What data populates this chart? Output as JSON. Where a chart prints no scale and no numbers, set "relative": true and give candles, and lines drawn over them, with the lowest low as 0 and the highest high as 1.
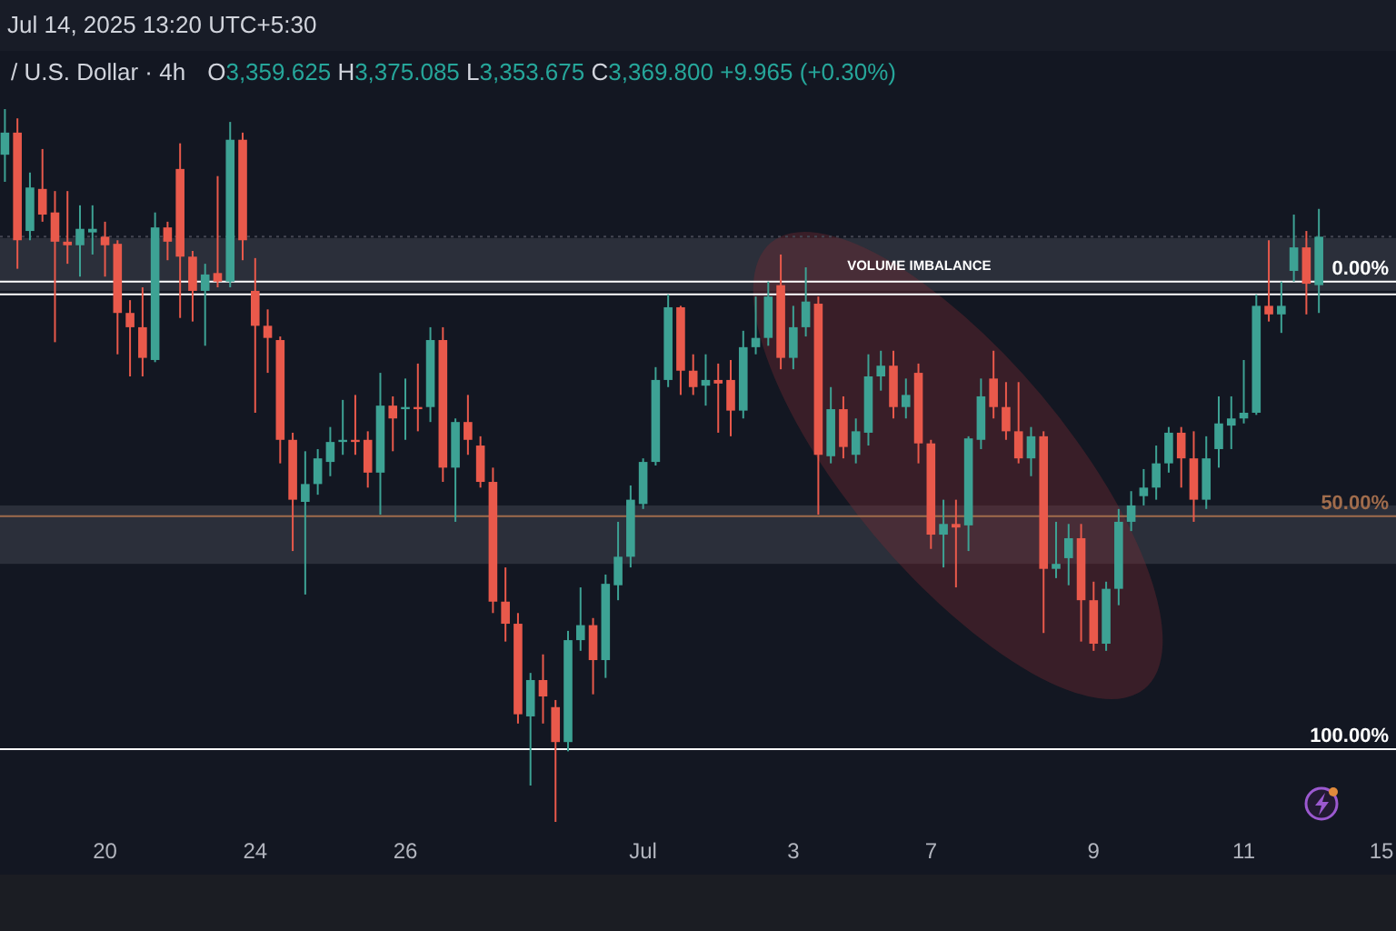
{
  "chart_data": {
    "type": "candlestick",
    "title": "/ U.S. Dollar · 4h",
    "subtitle": "O3,359.625 H3,375.085 L3,353.675 C3,369.800 +9.965 (+0.30%)",
    "annotations": [
      "Jul 14, 2025 13:20 UTC+5:30",
      {
        "text": "0.00%",
        "y": 0.758
      },
      {
        "text": "50.00%",
        "y": 0.429
      },
      {
        "text": "100.00%",
        "y": 0.102
      }
    ],
    "relative": true,
    "categories": [
      null,
      null,
      null,
      null,
      null,
      null,
      null,
      null,
      "20",
      null,
      null,
      null,
      null,
      null,
      null,
      null,
      null,
      null,
      null,
      null,
      "24",
      null,
      null,
      null,
      null,
      null,
      null,
      null,
      null,
      null,
      null,
      null,
      "26",
      null,
      null,
      null,
      null,
      null,
      null,
      null,
      null,
      null,
      null,
      null,
      null,
      null,
      null,
      null,
      null,
      null,
      null,
      "Jul",
      null,
      null,
      null,
      null,
      null,
      null,
      null,
      null,
      null,
      null,
      null,
      "3",
      null,
      null,
      null,
      null,
      null,
      null,
      null,
      null,
      null,
      null,
      "7",
      null,
      null,
      null,
      null,
      null,
      null,
      null,
      null,
      null,
      null,
      null,
      null,
      "9",
      null,
      null,
      null,
      null,
      null,
      null,
      null,
      null,
      null,
      null,
      null,
      "11",
      null,
      null,
      null,
      null,
      null,
      null,
      null,
      null,
      null,
      null,
      "15"
    ],
    "ohlc": [
      [
        0.936,
        1.0,
        0.898,
        0.967
      ],
      [
        0.967,
        0.987,
        0.776,
        0.816
      ],
      [
        0.829,
        0.911,
        0.816,
        0.89
      ],
      [
        0.888,
        0.944,
        0.842,
        0.852
      ],
      [
        0.855,
        0.885,
        0.673,
        0.814
      ],
      [
        0.814,
        0.885,
        0.783,
        0.809
      ],
      [
        0.809,
        0.865,
        0.765,
        0.832
      ],
      [
        0.827,
        0.865,
        0.796,
        0.832
      ],
      [
        0.821,
        0.842,
        0.765,
        0.809
      ],
      [
        0.811,
        0.816,
        0.656,
        0.714
      ],
      [
        0.714,
        0.732,
        0.625,
        0.694
      ],
      [
        0.694,
        0.75,
        0.625,
        0.651
      ],
      [
        0.648,
        0.855,
        0.645,
        0.834
      ],
      [
        0.834,
        0.842,
        0.788,
        0.814
      ],
      [
        0.916,
        0.952,
        0.707,
        0.793
      ],
      [
        0.793,
        0.801,
        0.702,
        0.745
      ],
      [
        0.745,
        0.783,
        0.668,
        0.768
      ],
      [
        0.77,
        0.906,
        0.75,
        0.758
      ],
      [
        0.758,
        0.982,
        0.75,
        0.957
      ],
      [
        0.957,
        0.967,
        0.788,
        0.816
      ],
      [
        0.745,
        0.791,
        0.574,
        0.696
      ],
      [
        0.696,
        0.719,
        0.63,
        0.679
      ],
      [
        0.676,
        0.681,
        0.503,
        0.536
      ],
      [
        0.536,
        0.546,
        0.38,
        0.452
      ],
      [
        0.449,
        0.52,
        0.319,
        0.474
      ],
      [
        0.474,
        0.523,
        0.459,
        0.51
      ],
      [
        0.505,
        0.554,
        0.485,
        0.533
      ],
      [
        0.533,
        0.592,
        0.515,
        0.536
      ],
      [
        0.536,
        0.599,
        0.515,
        0.533
      ],
      [
        0.536,
        0.548,
        0.469,
        0.49
      ],
      [
        0.49,
        0.63,
        0.431,
        0.584
      ],
      [
        0.584,
        0.597,
        0.52,
        0.566
      ],
      [
        0.579,
        0.622,
        0.536,
        0.582
      ],
      [
        0.582,
        0.643,
        0.548,
        0.579
      ],
      [
        0.582,
        0.694,
        0.561,
        0.676
      ],
      [
        0.676,
        0.694,
        0.477,
        0.497
      ],
      [
        0.497,
        0.566,
        0.421,
        0.561
      ],
      [
        0.561,
        0.599,
        0.515,
        0.536
      ],
      [
        0.528,
        0.541,
        0.469,
        0.477
      ],
      [
        0.477,
        0.497,
        0.293,
        0.309
      ],
      [
        0.309,
        0.357,
        0.253,
        0.278
      ],
      [
        0.278,
        0.293,
        0.138,
        0.151
      ],
      [
        0.148,
        0.209,
        0.051,
        0.199
      ],
      [
        0.199,
        0.235,
        0.138,
        0.176
      ],
      [
        0.161,
        0.171,
        0,
        0.112
      ],
      [
        0.112,
        0.268,
        0.099,
        0.255
      ],
      [
        0.255,
        0.329,
        0.24,
        0.276
      ],
      [
        0.276,
        0.286,
        0.179,
        0.227
      ],
      [
        0.227,
        0.347,
        0.202,
        0.334
      ],
      [
        0.332,
        0.421,
        0.311,
        0.372
      ],
      [
        0.372,
        0.472,
        0.357,
        0.452
      ],
      [
        0.446,
        0.51,
        0.439,
        0.505
      ],
      [
        0.505,
        0.638,
        0.5,
        0.62
      ],
      [
        0.62,
        0.74,
        0.61,
        0.722
      ],
      [
        0.722,
        0.724,
        0.599,
        0.633
      ],
      [
        0.633,
        0.656,
        0.599,
        0.61
      ],
      [
        0.612,
        0.656,
        0.584,
        0.62
      ],
      [
        0.62,
        0.643,
        0.546,
        0.615
      ],
      [
        0.62,
        0.648,
        0.541,
        0.577
      ],
      [
        0.577,
        0.689,
        0.566,
        0.666
      ],
      [
        0.666,
        0.737,
        0.656,
        0.679
      ],
      [
        0.679,
        0.758,
        0.668,
        0.737
      ],
      [
        0.753,
        0.796,
        0.635,
        0.651
      ],
      [
        0.651,
        0.724,
        0.635,
        0.694
      ],
      [
        0.694,
        0.778,
        0.681,
        0.73
      ],
      [
        0.727,
        0.737,
        0.431,
        0.515
      ],
      [
        0.513,
        0.61,
        0.503,
        0.579
      ],
      [
        0.579,
        0.597,
        0.51,
        0.526
      ],
      [
        0.515,
        0.566,
        0.503,
        0.548
      ],
      [
        0.546,
        0.656,
        0.528,
        0.625
      ],
      [
        0.625,
        0.661,
        0.605,
        0.64
      ],
      [
        0.64,
        0.661,
        0.566,
        0.582
      ],
      [
        0.582,
        0.622,
        0.566,
        0.599
      ],
      [
        0.63,
        0.643,
        0.503,
        0.531
      ],
      [
        0.531,
        0.536,
        0.383,
        0.403
      ],
      [
        0.403,
        0.452,
        0.357,
        0.418
      ],
      [
        0.418,
        0.452,
        0.329,
        0.413
      ],
      [
        0.416,
        0.541,
        0.38,
        0.538
      ],
      [
        0.536,
        0.622,
        0.523,
        0.597
      ],
      [
        0.622,
        0.661,
        0.566,
        0.582
      ],
      [
        0.582,
        0.617,
        0.536,
        0.548
      ],
      [
        0.548,
        0.617,
        0.503,
        0.51
      ],
      [
        0.51,
        0.554,
        0.485,
        0.541
      ],
      [
        0.541,
        0.548,
        0.265,
        0.355
      ],
      [
        0.355,
        0.421,
        0.342,
        0.362
      ],
      [
        0.37,
        0.418,
        0.332,
        0.398
      ],
      [
        0.398,
        0.418,
        0.253,
        0.311
      ],
      [
        0.311,
        0.337,
        0.24,
        0.25
      ],
      [
        0.25,
        0.337,
        0.24,
        0.327
      ],
      [
        0.327,
        0.439,
        0.304,
        0.421
      ],
      [
        0.421,
        0.464,
        0.408,
        0.444
      ],
      [
        0.457,
        0.495,
        0.444,
        0.469
      ],
      [
        0.469,
        0.528,
        0.452,
        0.503
      ],
      [
        0.503,
        0.554,
        0.49,
        0.546
      ],
      [
        0.546,
        0.554,
        0.469,
        0.51
      ],
      [
        0.51,
        0.548,
        0.421,
        0.452
      ],
      [
        0.452,
        0.541,
        0.439,
        0.51
      ],
      [
        0.523,
        0.597,
        0.497,
        0.559
      ],
      [
        0.556,
        0.597,
        0.523,
        0.566
      ],
      [
        0.566,
        0.648,
        0.559,
        0.574
      ],
      [
        0.574,
        0.74,
        0.571,
        0.724
      ],
      [
        0.724,
        0.816,
        0.702,
        0.712
      ],
      [
        0.712,
        0.758,
        0.686,
        0.724
      ],
      [
        0.773,
        0.852,
        0.758,
        0.806
      ],
      [
        0.806,
        0.829,
        0.712,
        0.755
      ],
      [
        0.753,
        0.86,
        0.714,
        0.821
      ],
      null,
      null,
      null,
      null,
      null
    ],
    "colors": [
      "#3da294",
      "#e9594b",
      "#3da294",
      "#e9594b",
      "#e9594b",
      "#e9594b",
      "#3da294",
      "#3da294",
      "#e9594b",
      "#e9594b",
      "#e9594b",
      "#e9594b",
      "#3da294",
      "#e9594b",
      "#e9594b",
      "#e9594b",
      "#3da294",
      "#e9594b",
      "#3da294",
      "#e9594b",
      "#e9594b",
      "#e9594b",
      "#e9594b",
      "#e9594b",
      "#3da294",
      "#3da294",
      "#3da294",
      "#3da294",
      "#e9594b",
      "#e9594b",
      "#3da294",
      "#e9594b",
      "#3da294",
      "#e9594b",
      "#3da294",
      "#e9594b",
      "#3da294",
      "#e9594b",
      "#e9594b",
      "#e9594b",
      "#e9594b",
      "#e9594b",
      "#3da294",
      "#e9594b",
      "#e9594b",
      "#3da294",
      "#3da294",
      "#e9594b",
      "#3da294",
      "#3da294",
      "#3da294",
      "#3da294",
      "#3da294",
      "#3da294",
      "#e9594b",
      "#e9594b",
      "#3da294",
      "#e9594b",
      "#e9594b",
      "#3da294",
      "#3da294",
      "#3da294",
      "#e9594b",
      "#3da294",
      "#3da294",
      "#e9594b",
      "#3da294",
      "#e9594b",
      "#3da294",
      "#3da294",
      "#3da294",
      "#e9594b",
      "#3da294",
      "#e9594b",
      "#e9594b",
      "#3da294",
      "#e9594b",
      "#3da294",
      "#3da294",
      "#e9594b",
      "#e9594b",
      "#e9594b",
      "#3da294",
      "#e9594b",
      "#3da294",
      "#3da294",
      "#e9594b",
      "#e9594b",
      "#3da294",
      "#3da294",
      "#3da294",
      "#3da294",
      "#3da294",
      "#3da294",
      "#e9594b",
      "#e9594b",
      "#3da294",
      "#3da294",
      "#3da294",
      "#3da294",
      "#3da294",
      "#e9594b",
      "#3da294",
      "#3da294",
      "#e9594b",
      "#3da294",
      null,
      null,
      null,
      null,
      null
    ],
    "bands": [
      {
        "axis": "y",
        "from": 0.745,
        "to": 0.819,
        "label": "VOLUME IMBALANCE",
        "color": "#363a45"
      },
      {
        "axis": "y",
        "from": 0.362,
        "to": 0.444,
        "color": "#363a45"
      }
    ],
    "ref_lines": [
      {
        "axis": "y",
        "value": 0.758,
        "color": "#ffffff"
      },
      {
        "axis": "y",
        "value": 0.429,
        "color": "#a06c4c"
      },
      {
        "axis": "y",
        "value": 0.102,
        "color": "#ffffff"
      },
      {
        "axis": "y",
        "value": 0.74,
        "color": "#ffffff"
      },
      {
        "axis": "y",
        "value": 0.821,
        "color": "#434651",
        "line_style": "dotted"
      }
    ]
  }
}
